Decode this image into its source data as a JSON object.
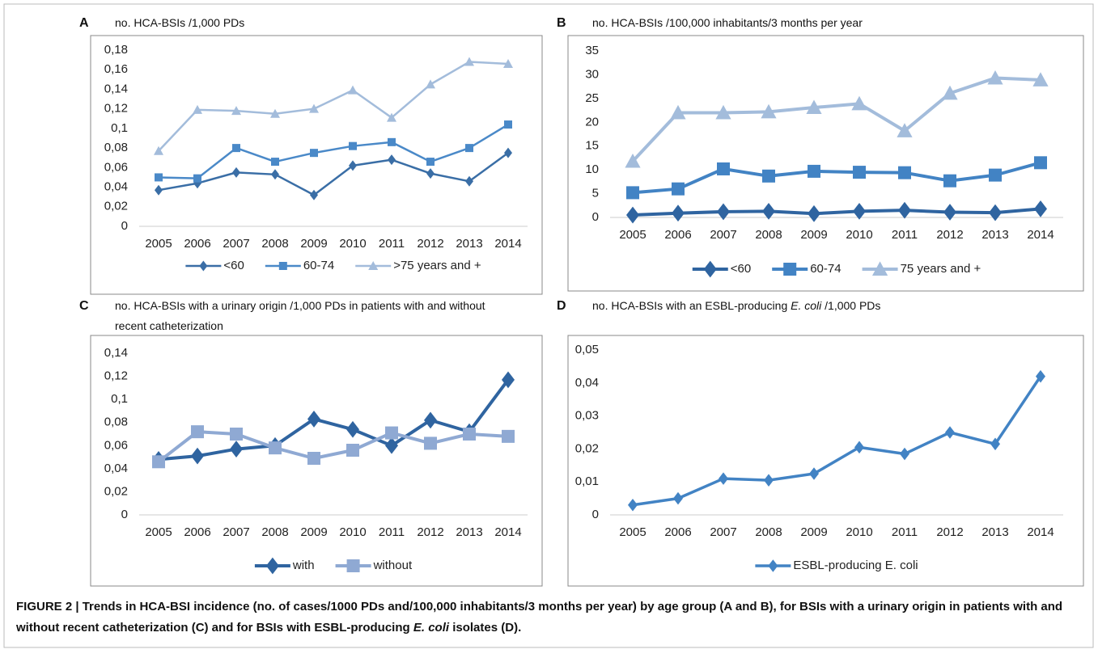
{
  "chart_data": [
    {
      "type": "line",
      "panel": "A",
      "title": "no. HCA-BSIs /1,000 PDs",
      "categories": [
        "2005",
        "2006",
        "2007",
        "2008",
        "2009",
        "2010",
        "2011",
        "2012",
        "2013",
        "2014"
      ],
      "series": [
        {
          "name": "<60",
          "color": "#3a6ea6",
          "marker": "diamond",
          "values": [
            0.037,
            0.044,
            0.055,
            0.053,
            0.032,
            0.062,
            0.068,
            0.054,
            0.046,
            0.075
          ]
        },
        {
          "name": "60-74",
          "color": "#4a89c8",
          "marker": "square",
          "values": [
            0.05,
            0.049,
            0.08,
            0.066,
            0.075,
            0.082,
            0.086,
            0.066,
            0.08,
            0.104
          ]
        },
        {
          "name": ">75 years and +",
          "color": "#a3bcdb",
          "marker": "triangle",
          "values": [
            0.077,
            0.119,
            0.118,
            0.115,
            0.12,
            0.139,
            0.111,
            0.145,
            0.168,
            0.166
          ]
        }
      ],
      "ylim": [
        0,
        0.18
      ],
      "yticks": [
        0,
        {
          "value": 0.02,
          "label": "0,02"
        },
        {
          "value": 0.04,
          "label": "0,04"
        },
        {
          "value": 0.06,
          "label": "0,06"
        },
        {
          "value": 0.08,
          "label": "0,08"
        },
        {
          "value": 0.1,
          "label": "0,1"
        },
        {
          "value": 0.12,
          "label": "0,12"
        },
        {
          "value": 0.14,
          "label": "0,14"
        },
        {
          "value": 0.16,
          "label": "0,16"
        },
        {
          "value": 0.18,
          "label": "0,18"
        }
      ],
      "grid": false,
      "legend": "bottom"
    },
    {
      "type": "line",
      "panel": "B",
      "title": "no. HCA-BSIs /100,000 inhabitants/3 months per year",
      "categories": [
        "2005",
        "2006",
        "2007",
        "2008",
        "2009",
        "2010",
        "2011",
        "2012",
        "2013",
        "2014"
      ],
      "series": [
        {
          "name": "<60",
          "color": "#2f64a0",
          "marker": "diamond",
          "values": [
            0.5,
            0.9,
            1.2,
            1.3,
            0.8,
            1.3,
            1.5,
            1.1,
            1.0,
            1.8
          ]
        },
        {
          "name": "60-74",
          "color": "#4283c4",
          "marker": "square",
          "values": [
            5.2,
            6.0,
            10.2,
            8.7,
            9.7,
            9.5,
            9.4,
            7.7,
            8.9,
            11.5
          ]
        },
        {
          "name": "75 years and +",
          "color": "#a3bcdb",
          "marker": "triangle",
          "values": [
            11.8,
            22,
            22,
            22.2,
            23.1,
            23.9,
            18.2,
            26.1,
            29.3,
            28.9
          ]
        }
      ],
      "ylim": [
        0,
        35
      ],
      "yticks": [
        0,
        5,
        10,
        15,
        20,
        25,
        30,
        35
      ],
      "grid": false,
      "legend": "bottom"
    },
    {
      "type": "line",
      "panel": "C",
      "title": "no. HCA-BSIs with a urinary origin /1,000 PDs in patients with and without recent catheterization",
      "categories": [
        "2005",
        "2006",
        "2007",
        "2008",
        "2009",
        "2010",
        "2011",
        "2012",
        "2013",
        "2014"
      ],
      "series": [
        {
          "name": "with",
          "color": "#2f64a0",
          "marker": "diamond",
          "values": [
            0.048,
            0.051,
            0.057,
            0.06,
            0.083,
            0.074,
            0.06,
            0.082,
            0.072,
            0.117
          ]
        },
        {
          "name": "without",
          "color": "#8fa9d3",
          "marker": "square",
          "values": [
            0.046,
            0.072,
            0.07,
            0.058,
            0.049,
            0.056,
            0.071,
            0.062,
            0.07,
            0.068
          ]
        }
      ],
      "ylim": [
        0,
        0.14
      ],
      "yticks": [
        0,
        {
          "value": 0.02,
          "label": "0,02"
        },
        {
          "value": 0.04,
          "label": "0,04"
        },
        {
          "value": 0.06,
          "label": "0,06"
        },
        {
          "value": 0.08,
          "label": "0,08"
        },
        {
          "value": 0.1,
          "label": "0,1"
        },
        {
          "value": 0.12,
          "label": "0,12"
        },
        {
          "value": 0.14,
          "label": "0,14"
        }
      ],
      "grid": false,
      "legend": "bottom"
    },
    {
      "type": "line",
      "panel": "D",
      "title": [
        "no. HCA-BSIs with an ESBL-producing ",
        "E. coli",
        " /1,000 PDs"
      ],
      "categories": [
        "2005",
        "2006",
        "2007",
        "2008",
        "2009",
        "2010",
        "2011",
        "2012",
        "2013",
        "2014"
      ],
      "series": [
        {
          "name": "ESBL-producing E. coli",
          "color": "#4283c4",
          "marker": "diamond",
          "values": [
            0.003,
            0.005,
            0.011,
            0.0105,
            0.0125,
            0.0205,
            0.0185,
            0.025,
            0.0215,
            0.042
          ]
        }
      ],
      "ylim": [
        0,
        0.05
      ],
      "yticks": [
        0,
        {
          "value": 0.01,
          "label": "0,01"
        },
        {
          "value": 0.02,
          "label": "0,02"
        },
        {
          "value": 0.03,
          "label": "0,03"
        },
        {
          "value": 0.04,
          "label": "0,04"
        },
        {
          "value": 0.05,
          "label": "0,05"
        }
      ],
      "grid": false,
      "legend": "bottom"
    }
  ],
  "caption": [
    "FIGURE 2 | Trends in HCA-BSI incidence (no. of cases/1000 PDs and/100,000 inhabitants/3 months per year) by age group (A and B), for BSIs with a urinary origin in patients with and without recent catheterization (C) and for BSIs with ESBL-producing ",
    "E. coli",
    " isolates (D)."
  ]
}
